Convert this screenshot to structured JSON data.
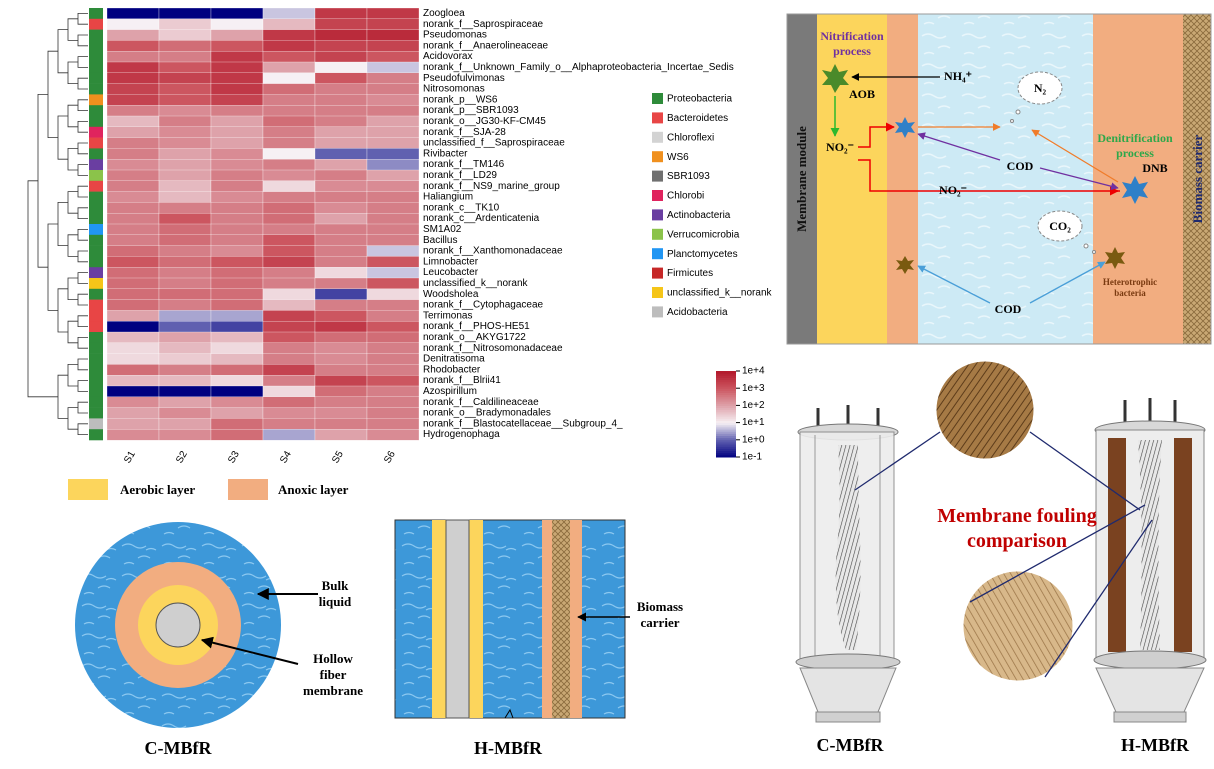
{
  "heatmap": {
    "rows": [
      "Zoogloea",
      "norank_f__Saprospiraceae",
      "Pseudomonas",
      "norank_f__Anaerolineaceae",
      "Acidovorax",
      "norank_f__Unknown_Family_o__Alphaproteobacteria_Incertae_Sedis",
      "Pseudofulvimonas",
      "Nitrosomonas",
      "norank_p__WS6",
      "norank_p__SBR1093",
      "norank_o__JG30-KF-CM45",
      "norank_f__SJA-28",
      "unclassified_f__Saprospiraceae",
      "Rivibacter",
      "norank_f__TM146",
      "norank_f__LD29",
      "norank_f__NS9_marine_group",
      "Haliangium",
      "norank_c__TK10",
      "norank_c__Ardenticatenia",
      "SM1A02",
      "Bacillus",
      "norank_f__Xanthomonadaceae",
      "Limnobacter",
      "Leucobacter",
      "unclassified_k__norank",
      "Woodsholea",
      "norank_f__Cytophagaceae",
      "Terrimonas",
      "norank_f__PHOS-HE51",
      "norank_o__AKYG1722",
      "norank_f__Nitrosomonadaceae",
      "Denitratisoma",
      "Rhodobacter",
      "norank_f__Blrii41",
      "Azospirillum",
      "norank_f__Caldilineaceae",
      "norank_o__Bradymonadales",
      "norank_f__Blastocatellaceae__Subgroup_4_",
      "Hydrogenophaga"
    ],
    "columns": [
      "S1",
      "S2",
      "S3",
      "S4",
      "S5",
      "S6"
    ],
    "values": [
      [
        0.1,
        0.1,
        0.1,
        5,
        3000,
        3000
      ],
      [
        10,
        30,
        10,
        50,
        2000,
        2000
      ],
      [
        100,
        30,
        100,
        3000,
        5000,
        5000
      ],
      [
        1000,
        500,
        1000,
        3000,
        2000,
        2000
      ],
      [
        300,
        300,
        3000,
        1000,
        2000,
        1000
      ],
      [
        3000,
        1000,
        3000,
        100,
        10,
        5
      ],
      [
        3000,
        2000,
        3000,
        10,
        1000,
        300
      ],
      [
        2000,
        1000,
        3000,
        500,
        300,
        300
      ],
      [
        2000,
        1000,
        2000,
        300,
        300,
        200
      ],
      [
        300,
        200,
        300,
        300,
        300,
        300
      ],
      [
        50,
        300,
        100,
        500,
        300,
        100
      ],
      [
        100,
        200,
        100,
        300,
        100,
        100
      ],
      [
        300,
        200,
        100,
        300,
        100,
        100
      ],
      [
        300,
        100,
        200,
        10,
        1,
        1
      ],
      [
        200,
        100,
        200,
        300,
        100,
        2
      ],
      [
        300,
        100,
        300,
        200,
        300,
        100
      ],
      [
        300,
        50,
        300,
        20,
        200,
        200
      ],
      [
        200,
        50,
        200,
        300,
        300,
        300
      ],
      [
        300,
        300,
        300,
        500,
        200,
        300
      ],
      [
        300,
        1000,
        300,
        500,
        100,
        300
      ],
      [
        300,
        500,
        300,
        300,
        300,
        300
      ],
      [
        300,
        500,
        300,
        1000,
        300,
        300
      ],
      [
        500,
        300,
        200,
        1000,
        300,
        5
      ],
      [
        1000,
        500,
        1000,
        2000,
        300,
        1000
      ],
      [
        500,
        300,
        500,
        300,
        20,
        5
      ],
      [
        500,
        300,
        500,
        300,
        300,
        1000
      ],
      [
        500,
        500,
        500,
        20,
        0.5,
        20
      ],
      [
        500,
        300,
        500,
        50,
        300,
        300
      ],
      [
        100,
        3,
        3,
        2000,
        1000,
        300
      ],
      [
        0.1,
        1,
        0.5,
        2000,
        3000,
        1000
      ],
      [
        50,
        100,
        50,
        1000,
        500,
        500
      ],
      [
        20,
        50,
        20,
        300,
        200,
        300
      ],
      [
        20,
        30,
        50,
        300,
        200,
        300
      ],
      [
        500,
        300,
        500,
        2000,
        300,
        300
      ],
      [
        50,
        50,
        20,
        300,
        2000,
        1000
      ],
      [
        0.1,
        0.1,
        0.1,
        20,
        500,
        300
      ],
      [
        200,
        100,
        200,
        500,
        300,
        300
      ],
      [
        100,
        200,
        100,
        200,
        200,
        300
      ],
      [
        100,
        100,
        500,
        300,
        300,
        300
      ],
      [
        200,
        200,
        500,
        3,
        100,
        200
      ]
    ],
    "row_phylum": [
      "Proteobacteria",
      "Bacteroidetes",
      "Proteobacteria",
      "Proteobacteria",
      "Proteobacteria",
      "Proteobacteria",
      "Proteobacteria",
      "Proteobacteria",
      "WS6",
      "Proteobacteria",
      "Proteobacteria",
      "Chlorobi",
      "Bacteroidetes",
      "Proteobacteria",
      "Actinobacteria",
      "Verrucomicrobia",
      "Bacteroidetes",
      "Proteobacteria",
      "Proteobacteria",
      "Proteobacteria",
      "Planctomycetes",
      "Proteobacteria",
      "Proteobacteria",
      "Proteobacteria",
      "Actinobacteria",
      "unclassified_k__norank",
      "Proteobacteria",
      "Bacteroidetes",
      "Bacteroidetes",
      "Bacteroidetes",
      "Proteobacteria",
      "Proteobacteria",
      "Proteobacteria",
      "Proteobacteria",
      "Proteobacteria",
      "Proteobacteria",
      "Proteobacteria",
      "Proteobacteria",
      "Acidobacteria",
      "Proteobacteria"
    ],
    "phyla": [
      {
        "name": "Proteobacteria",
        "color": "#2e8b3a"
      },
      {
        "name": "Bacteroidetes",
        "color": "#e84545"
      },
      {
        "name": "Chloroflexi",
        "color": "#d3d3d3"
      },
      {
        "name": "WS6",
        "color": "#f0901e"
      },
      {
        "name": "SBR1093",
        "color": "#707070"
      },
      {
        "name": "Chlorobi",
        "color": "#e0245e"
      },
      {
        "name": "Actinobacteria",
        "color": "#6a3ea1"
      },
      {
        "name": "Verrucomicrobia",
        "color": "#8bc34a"
      },
      {
        "name": "Planctomycetes",
        "color": "#2196f3"
      },
      {
        "name": "Firmicutes",
        "color": "#c62828"
      },
      {
        "name": "unclassified_k__norank",
        "color": "#f5c518"
      },
      {
        "name": "Acidobacteria",
        "color": "#bdbdbd"
      }
    ],
    "colorbar": {
      "lim": [
        0.1,
        10000
      ],
      "log": true,
      "ticks": [
        {
          "value": 10000,
          "label": "1e+4"
        },
        {
          "value": 1000,
          "label": "1e+3"
        },
        {
          "value": 100,
          "label": "1e+2"
        },
        {
          "value": 10,
          "label": "1e+1"
        },
        {
          "value": 1,
          "label": "1e+0"
        },
        {
          "value": 0.1,
          "label": "1e-1"
        }
      ]
    }
  },
  "process": {
    "membrane_module": "Membrane module",
    "biomass_carrier": "Biomass carrier",
    "nitrification": [
      "Nitrification",
      "process"
    ],
    "denitrification": [
      "Denitrification",
      "process"
    ],
    "aob": "AOB",
    "nh4": "NH₄⁺",
    "n2": "N₂",
    "no2_left": "NO₂⁻",
    "no2_mid": "NO₂⁻",
    "cod_upper": "COD",
    "cod_lower": "COD",
    "dnb": "DNB",
    "co2": "CO₂",
    "heterotrophic": [
      "Heterotrophic",
      "bacteria"
    ]
  },
  "layers": {
    "aerobic": "Aerobic layer",
    "anoxic": "Anoxic layer",
    "bulk_liquid": [
      "Bulk",
      "liquid"
    ],
    "hollow_fiber": [
      "Hollow",
      "fiber",
      "membrane"
    ],
    "biomass_carrier": [
      "Biomass",
      "carrier"
    ],
    "c_title": "C-MBfR",
    "h_title": "H-MBfR"
  },
  "reactors": {
    "comparison": [
      "Membrane fouling",
      "comparison"
    ],
    "c_title": "C-MBfR",
    "h_title": "H-MBfR"
  }
}
